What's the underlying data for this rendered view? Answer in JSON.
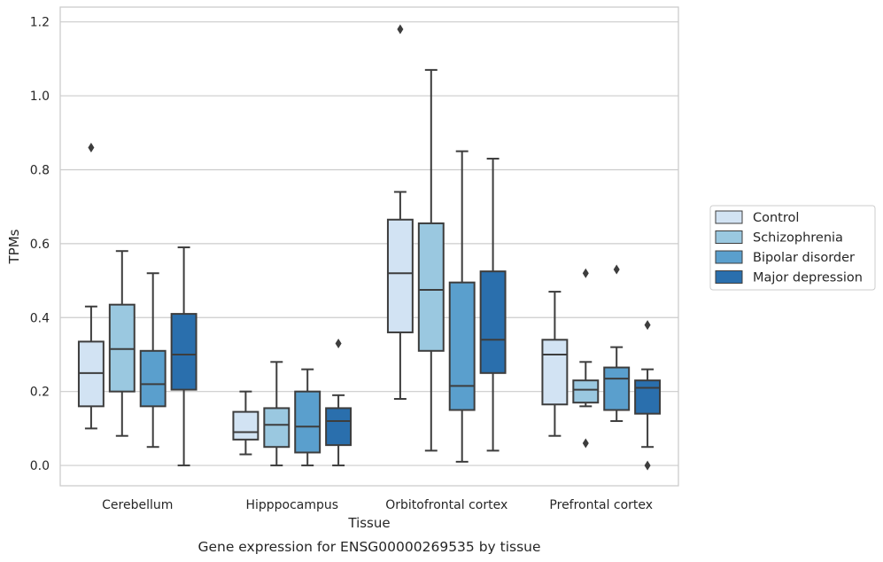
{
  "chart_data": {
    "type": "box",
    "title": "",
    "caption": "Gene expression for ENSG00000269535 by tissue",
    "xlabel": "Tissue",
    "ylabel": "TPMs",
    "ylim": [
      -0.055,
      1.24
    ],
    "yticks": [
      0.0,
      0.2,
      0.4,
      0.6,
      0.8,
      1.0,
      1.2
    ],
    "ytick_labels": [
      "0.0",
      "0.2",
      "0.4",
      "0.6",
      "0.8",
      "1.0",
      "1.2"
    ],
    "grid": "horizontal",
    "legend_position": "right-outside",
    "categories": [
      "Cerebellum",
      "Hipppocampus",
      "Orbitofrontal cortex",
      "Prefrontal cortex"
    ],
    "series": [
      {
        "name": "Control",
        "color": "#d2e3f3",
        "boxes": [
          {
            "whislo": 0.1,
            "q1": 0.16,
            "med": 0.25,
            "q3": 0.335,
            "whishi": 0.43,
            "fliers": [
              0.86
            ]
          },
          {
            "whislo": 0.03,
            "q1": 0.07,
            "med": 0.09,
            "q3": 0.145,
            "whishi": 0.2,
            "fliers": []
          },
          {
            "whislo": 0.18,
            "q1": 0.36,
            "med": 0.52,
            "q3": 0.665,
            "whishi": 0.74,
            "fliers": [
              1.18
            ]
          },
          {
            "whislo": 0.08,
            "q1": 0.165,
            "med": 0.3,
            "q3": 0.34,
            "whishi": 0.47,
            "fliers": []
          }
        ]
      },
      {
        "name": "Schizophrenia",
        "color": "#9ac8e0",
        "boxes": [
          {
            "whislo": 0.08,
            "q1": 0.2,
            "med": 0.315,
            "q3": 0.435,
            "whishi": 0.58,
            "fliers": []
          },
          {
            "whislo": 0.0,
            "q1": 0.05,
            "med": 0.11,
            "q3": 0.155,
            "whishi": 0.28,
            "fliers": []
          },
          {
            "whislo": 0.04,
            "q1": 0.31,
            "med": 0.475,
            "q3": 0.655,
            "whishi": 1.07,
            "fliers": []
          },
          {
            "whislo": 0.16,
            "q1": 0.17,
            "med": 0.205,
            "q3": 0.23,
            "whishi": 0.28,
            "fliers": [
              0.52,
              0.06
            ]
          }
        ]
      },
      {
        "name": "Bipolar disorder",
        "color": "#5a9fcd",
        "boxes": [
          {
            "whislo": 0.05,
            "q1": 0.16,
            "med": 0.22,
            "q3": 0.31,
            "whishi": 0.52,
            "fliers": []
          },
          {
            "whislo": 0.0,
            "q1": 0.035,
            "med": 0.105,
            "q3": 0.2,
            "whishi": 0.26,
            "fliers": []
          },
          {
            "whislo": 0.01,
            "q1": 0.15,
            "med": 0.215,
            "q3": 0.495,
            "whishi": 0.85,
            "fliers": []
          },
          {
            "whislo": 0.12,
            "q1": 0.15,
            "med": 0.235,
            "q3": 0.265,
            "whishi": 0.32,
            "fliers": [
              0.53
            ]
          }
        ]
      },
      {
        "name": "Major depression",
        "color": "#2a6fad",
        "boxes": [
          {
            "whislo": 0.0,
            "q1": 0.205,
            "med": 0.3,
            "q3": 0.41,
            "whishi": 0.59,
            "fliers": []
          },
          {
            "whislo": 0.0,
            "q1": 0.055,
            "med": 0.12,
            "q3": 0.155,
            "whishi": 0.19,
            "fliers": [
              0.33
            ]
          },
          {
            "whislo": 0.04,
            "q1": 0.25,
            "med": 0.34,
            "q3": 0.525,
            "whishi": 0.83,
            "fliers": []
          },
          {
            "whislo": 0.05,
            "q1": 0.14,
            "med": 0.21,
            "q3": 0.23,
            "whishi": 0.26,
            "fliers": [
              0.38,
              0.0
            ]
          }
        ]
      }
    ]
  }
}
